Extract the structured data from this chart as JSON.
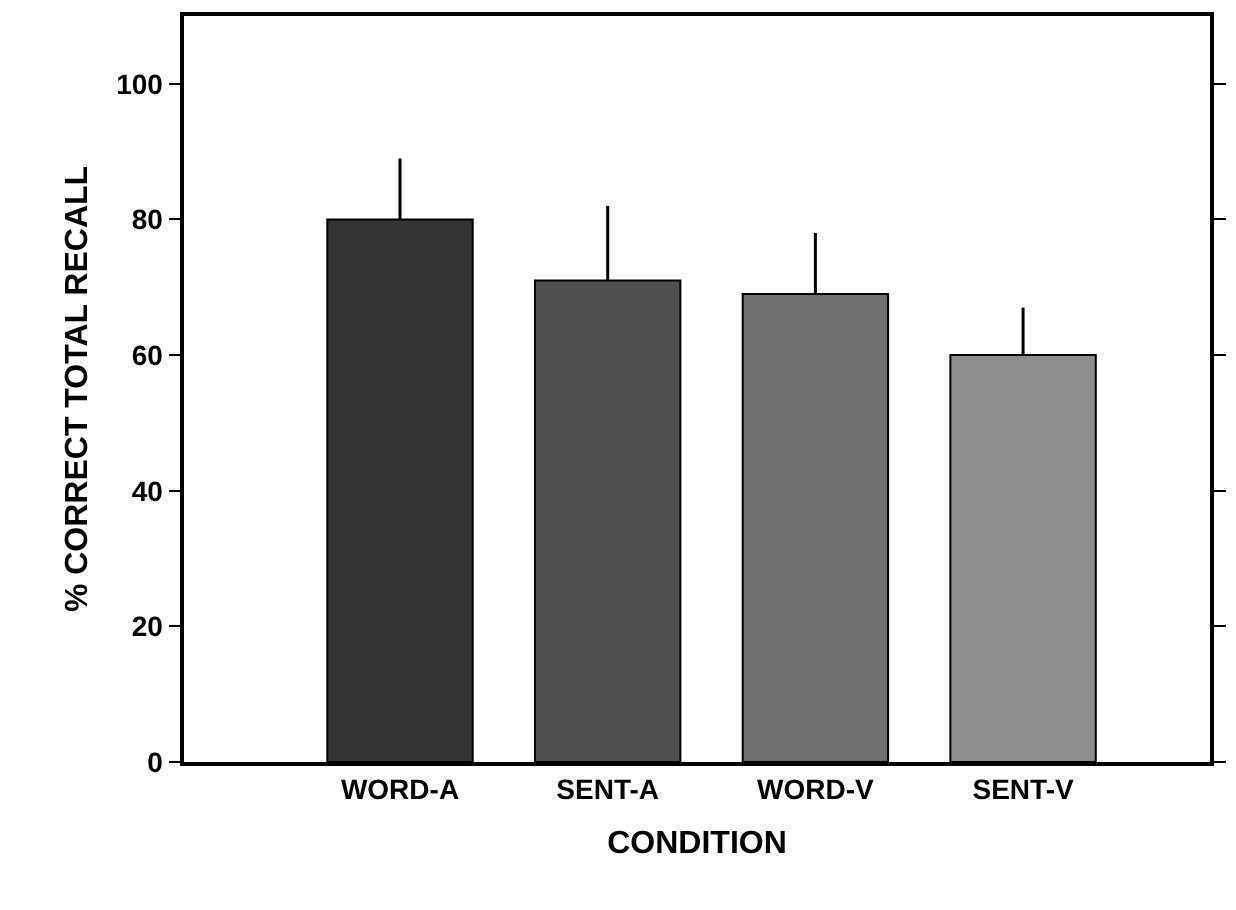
{
  "chart_data": {
    "type": "bar",
    "xlabel": "CONDITION",
    "ylabel": "% CORRECT TOTAL RECALL",
    "categories": [
      "WORD-A",
      "SENT-A",
      "WORD-V",
      "SENT-V"
    ],
    "values": [
      80,
      71,
      69,
      60
    ],
    "colors": [
      "#333333",
      "#505050",
      "#6e6e6e",
      "#8e8e8e"
    ],
    "errors": [
      [
        80,
        89
      ],
      [
        71,
        82
      ],
      [
        69,
        78
      ],
      [
        60,
        67
      ]
    ],
    "ylim": [
      0,
      110
    ],
    "yticks": [
      0,
      20,
      40,
      60,
      80,
      100
    ],
    "grid": false
  }
}
